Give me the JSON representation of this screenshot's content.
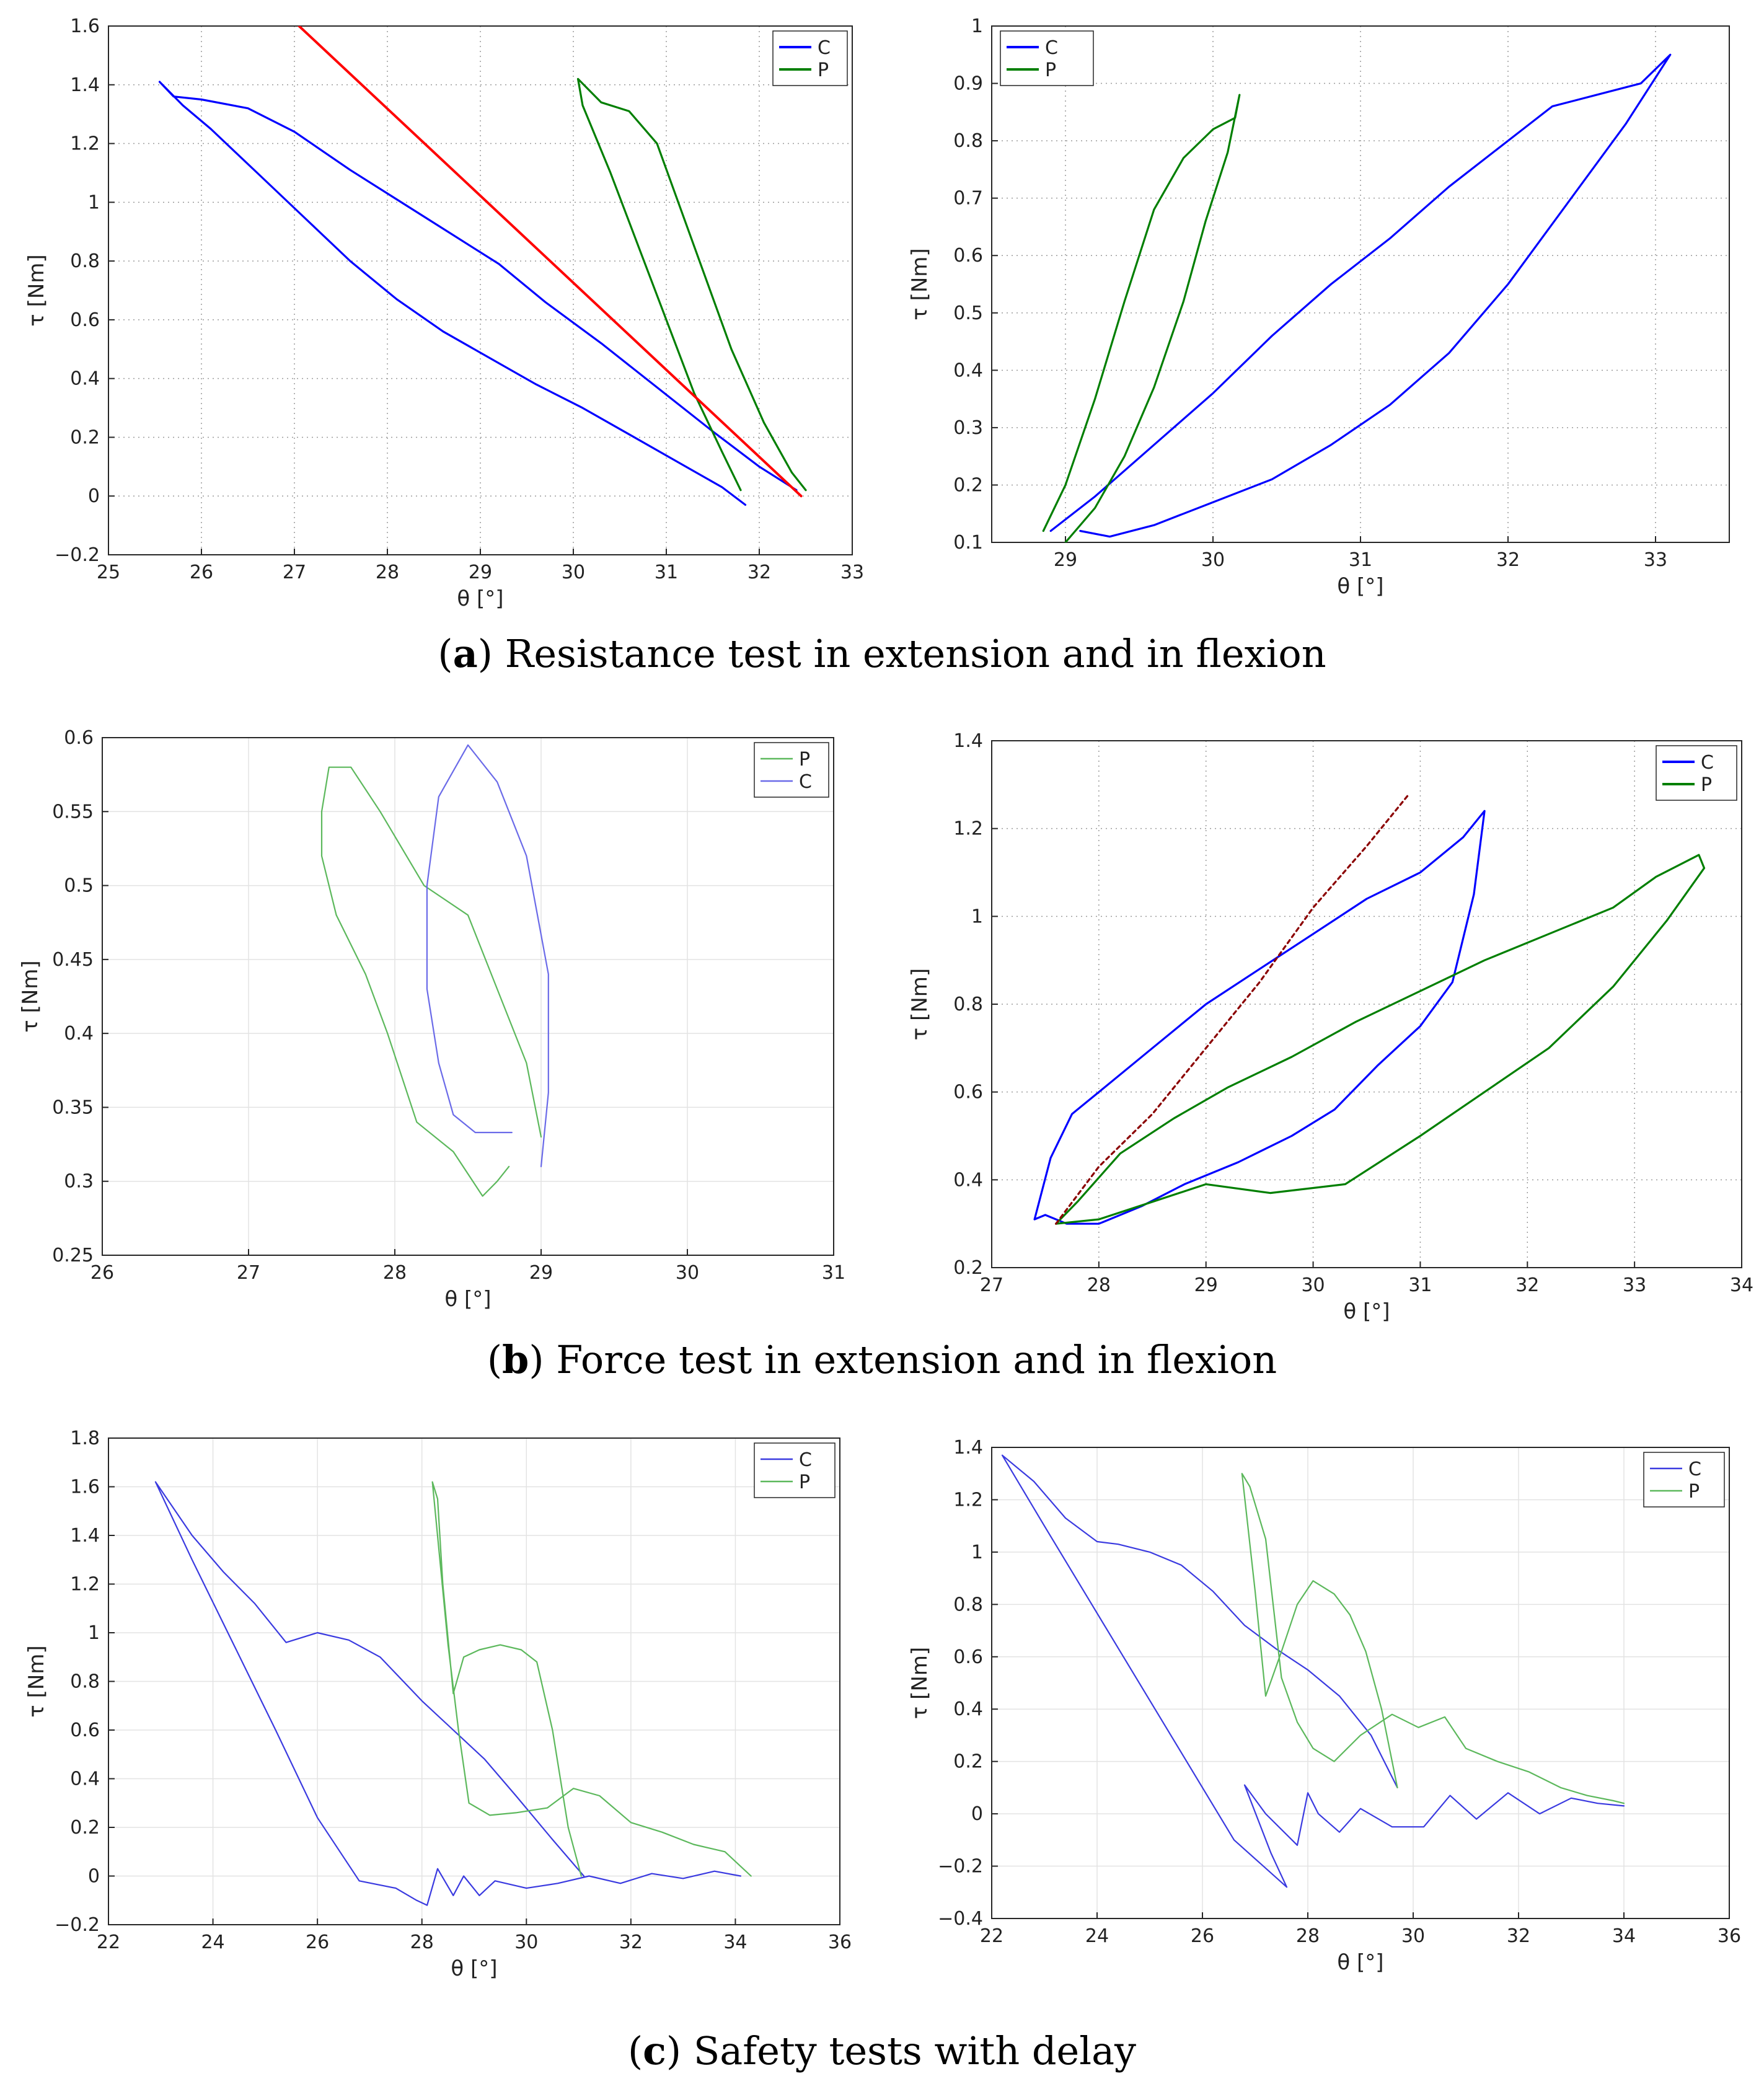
{
  "figure": {
    "captions": [
      {
        "letter": "a",
        "text": "Resistance test in extension and in flexion"
      },
      {
        "letter": "b",
        "text": "Force test in extension and in flexion"
      },
      {
        "letter": "c",
        "text": "Safety tests with delay"
      }
    ]
  },
  "chart_data": [
    {
      "id": "a-left",
      "type": "line",
      "xlabel": "θ [°]",
      "ylabel": "τ [Nm]",
      "xlim": [
        25,
        33
      ],
      "ylim": [
        -0.2,
        1.6
      ],
      "xticks": [
        25,
        26,
        27,
        28,
        29,
        30,
        31,
        32,
        33
      ],
      "yticks": [
        -0.2,
        0,
        0.2,
        0.4,
        0.6,
        0.8,
        1,
        1.2,
        1.4,
        1.6
      ],
      "ytick_labels": [
        "−0.2",
        "0",
        "0.2",
        "0.4",
        "0.6",
        "0.8",
        "1",
        "1.2",
        "1.4",
        "1.6"
      ],
      "grid": "dotted",
      "legend_position": "top-right",
      "series": [
        {
          "name": "C",
          "color": "#0000ff",
          "x": [
            31.85,
            31.6,
            31.1,
            30.6,
            30.1,
            29.6,
            29.1,
            28.6,
            28.1,
            27.6,
            27.1,
            26.6,
            26.1,
            25.8,
            25.55,
            25.7,
            26.0,
            26.5,
            27.0,
            27.6,
            28.0,
            28.6,
            29.2,
            29.7,
            30.3,
            30.9,
            31.5,
            32.0,
            32.4
          ],
          "y": [
            -0.03,
            0.03,
            0.12,
            0.21,
            0.3,
            0.38,
            0.47,
            0.56,
            0.67,
            0.8,
            0.95,
            1.1,
            1.25,
            1.33,
            1.41,
            1.36,
            1.35,
            1.32,
            1.24,
            1.11,
            1.03,
            0.91,
            0.79,
            0.66,
            0.52,
            0.37,
            0.22,
            0.1,
            0.02
          ]
        },
        {
          "name": "P",
          "color": "#007f00",
          "x": [
            31.8,
            31.6,
            31.3,
            31.0,
            30.7,
            30.4,
            30.1,
            30.05,
            30.3,
            30.6,
            30.9,
            31.3,
            31.7,
            32.05,
            32.35,
            32.5
          ],
          "y": [
            0.02,
            0.15,
            0.35,
            0.6,
            0.85,
            1.1,
            1.33,
            1.42,
            1.34,
            1.31,
            1.2,
            0.85,
            0.5,
            0.25,
            0.08,
            0.02
          ]
        },
        {
          "name": "",
          "color": "#ff0000",
          "x": [
            27.05,
            32.45
          ],
          "y": [
            1.6,
            0.0
          ]
        }
      ]
    },
    {
      "id": "a-right",
      "type": "line",
      "xlabel": "θ [°]",
      "ylabel": "τ [Nm]",
      "xlim": [
        28.5,
        33.5
      ],
      "ylim": [
        0.1,
        1.0
      ],
      "xticks": [
        29,
        30,
        31,
        32,
        33
      ],
      "yticks": [
        0.1,
        0.2,
        0.3,
        0.4,
        0.5,
        0.6,
        0.7,
        0.8,
        0.9,
        1
      ],
      "ytick_labels": [
        "0.1",
        "0.2",
        "0.3",
        "0.4",
        "0.5",
        "0.6",
        "0.7",
        "0.8",
        "0.9",
        "1"
      ],
      "grid": "dotted",
      "legend_position": "top-left",
      "series": [
        {
          "name": "C",
          "color": "#0000ff",
          "x": [
            28.9,
            29.2,
            29.6,
            30.0,
            30.4,
            30.8,
            31.2,
            31.6,
            32.0,
            32.3,
            32.6,
            32.9,
            33.1,
            32.8,
            32.4,
            32.0,
            31.6,
            31.2,
            30.8,
            30.4,
            30.0,
            29.6,
            29.3,
            29.1
          ],
          "y": [
            0.12,
            0.18,
            0.27,
            0.36,
            0.46,
            0.55,
            0.63,
            0.72,
            0.8,
            0.86,
            0.88,
            0.9,
            0.95,
            0.83,
            0.69,
            0.55,
            0.43,
            0.34,
            0.27,
            0.21,
            0.17,
            0.13,
            0.11,
            0.12
          ]
        },
        {
          "name": "P",
          "color": "#007f00",
          "x": [
            28.85,
            29.0,
            29.2,
            29.4,
            29.6,
            29.8,
            30.0,
            30.15,
            30.18,
            30.1,
            29.95,
            29.8,
            29.6,
            29.4,
            29.2,
            29.0
          ],
          "y": [
            0.12,
            0.2,
            0.35,
            0.52,
            0.68,
            0.77,
            0.82,
            0.84,
            0.88,
            0.78,
            0.66,
            0.52,
            0.37,
            0.25,
            0.16,
            0.1
          ]
        }
      ]
    },
    {
      "id": "b-left",
      "type": "line",
      "xlabel": "θ [°]",
      "ylabel": "τ [Nm]",
      "xlim": [
        26,
        31
      ],
      "ylim": [
        0.25,
        0.6
      ],
      "xticks": [
        26,
        27,
        28,
        29,
        30,
        31
      ],
      "yticks": [
        0.25,
        0.3,
        0.35,
        0.4,
        0.45,
        0.5,
        0.55,
        0.6
      ],
      "ytick_labels": [
        "0.25",
        "0.3",
        "0.35",
        "0.4",
        "0.45",
        "0.5",
        "0.55",
        "0.6"
      ],
      "grid": "solid",
      "legend_position": "top-right",
      "series": [
        {
          "name": "P",
          "color": "#5cb85c",
          "x": [
            28.78,
            28.7,
            28.6,
            28.4,
            28.15,
            27.95,
            27.8,
            27.6,
            27.5,
            27.5,
            27.55,
            27.7,
            27.9,
            28.2,
            28.5,
            28.7,
            28.9,
            29.0
          ],
          "y": [
            0.31,
            0.3,
            0.29,
            0.32,
            0.34,
            0.4,
            0.44,
            0.48,
            0.52,
            0.55,
            0.58,
            0.58,
            0.55,
            0.5,
            0.48,
            0.43,
            0.38,
            0.33
          ]
        },
        {
          "name": "C",
          "color": "#6a6ae8",
          "x": [
            28.8,
            28.55,
            28.4,
            28.3,
            28.22,
            28.22,
            28.3,
            28.5,
            28.7,
            28.9,
            29.05,
            29.05,
            29.0
          ],
          "y": [
            0.333,
            0.333,
            0.345,
            0.38,
            0.43,
            0.5,
            0.56,
            0.595,
            0.57,
            0.52,
            0.44,
            0.36,
            0.31
          ]
        }
      ]
    },
    {
      "id": "b-right",
      "type": "line",
      "xlabel": "θ [°]",
      "ylabel": "τ [Nm]",
      "xlim": [
        27,
        34
      ],
      "ylim": [
        0.2,
        1.4
      ],
      "xticks": [
        27,
        28,
        29,
        30,
        31,
        32,
        33,
        34
      ],
      "yticks": [
        0.2,
        0.4,
        0.6,
        0.8,
        1,
        1.2,
        1.4
      ],
      "ytick_labels": [
        "0.2",
        "0.4",
        "0.6",
        "0.8",
        "1",
        "1.2",
        "1.4"
      ],
      "grid": "dotted",
      "legend_position": "top-right",
      "series": [
        {
          "name": "C",
          "color": "#0000ff",
          "x": [
            27.4,
            27.55,
            27.75,
            28.0,
            28.5,
            29.0,
            29.5,
            30.0,
            30.5,
            31.0,
            31.4,
            31.6,
            31.5,
            31.3,
            31.0,
            30.6,
            30.2,
            29.8,
            29.3,
            28.8,
            28.4,
            28.0,
            27.7,
            27.5,
            27.4
          ],
          "y": [
            0.31,
            0.45,
            0.55,
            0.6,
            0.7,
            0.8,
            0.88,
            0.96,
            1.04,
            1.1,
            1.18,
            1.24,
            1.05,
            0.85,
            0.75,
            0.66,
            0.56,
            0.5,
            0.44,
            0.39,
            0.34,
            0.3,
            0.3,
            0.32,
            0.31
          ]
        },
        {
          "name": "P",
          "color": "#007f00",
          "x": [
            27.6,
            27.8,
            28.2,
            28.7,
            29.2,
            29.8,
            30.4,
            31.0,
            31.6,
            32.2,
            32.8,
            33.2,
            33.6,
            33.65,
            33.3,
            32.8,
            32.2,
            31.6,
            31.0,
            30.3,
            29.6,
            29.0,
            28.5,
            28.0,
            27.6
          ],
          "y": [
            0.3,
            0.35,
            0.46,
            0.54,
            0.61,
            0.68,
            0.76,
            0.83,
            0.9,
            0.96,
            1.02,
            1.09,
            1.14,
            1.11,
            0.99,
            0.84,
            0.7,
            0.6,
            0.5,
            0.39,
            0.37,
            0.39,
            0.35,
            0.31,
            0.3
          ]
        },
        {
          "name": "",
          "color": "#8b0000",
          "dashed": true,
          "x": [
            27.6,
            28.0,
            28.5,
            29.0,
            29.5,
            30.0,
            30.5,
            30.9
          ],
          "y": [
            0.3,
            0.43,
            0.55,
            0.7,
            0.85,
            1.02,
            1.16,
            1.28
          ]
        }
      ]
    },
    {
      "id": "c-left",
      "type": "line",
      "xlabel": "θ [°]",
      "ylabel": "τ [Nm]",
      "xlim": [
        22,
        36
      ],
      "ylim": [
        -0.2,
        1.8
      ],
      "xticks": [
        22,
        24,
        26,
        28,
        30,
        32,
        34,
        36
      ],
      "yticks": [
        -0.2,
        0,
        0.2,
        0.4,
        0.6,
        0.8,
        1,
        1.2,
        1.4,
        1.6,
        1.8
      ],
      "ytick_labels": [
        "−0.2",
        "0",
        "0.2",
        "0.4",
        "0.6",
        "0.8",
        "1",
        "1.2",
        "1.4",
        "1.6",
        "1.8"
      ],
      "grid": "solid",
      "legend_position": "top-right",
      "series": [
        {
          "name": "C",
          "color": "#3a3ae0",
          "x": [
            31.1,
            30.5,
            29.8,
            29.2,
            28.6,
            28.0,
            27.2,
            26.6,
            26.0,
            25.4,
            24.8,
            24.2,
            23.6,
            22.9,
            23.6,
            24.4,
            25.2,
            26.0,
            26.8,
            27.5,
            27.9,
            28.1,
            28.3,
            28.6,
            28.8,
            29.1,
            29.4,
            30.0,
            30.6,
            31.2,
            31.8,
            32.4,
            33.0,
            33.6,
            34.1
          ],
          "y": [
            0.0,
            0.15,
            0.33,
            0.48,
            0.6,
            0.72,
            0.9,
            0.97,
            1.0,
            0.96,
            1.12,
            1.25,
            1.4,
            1.62,
            1.3,
            0.95,
            0.6,
            0.24,
            -0.02,
            -0.05,
            -0.1,
            -0.12,
            0.03,
            -0.08,
            0.0,
            -0.08,
            -0.02,
            -0.05,
            -0.03,
            0.0,
            -0.03,
            0.01,
            -0.01,
            0.02,
            0.0
          ]
        },
        {
          "name": "P",
          "color": "#5cb85c",
          "x": [
            31.05,
            30.8,
            30.5,
            30.2,
            29.9,
            29.5,
            29.1,
            28.8,
            28.6,
            28.4,
            28.3,
            28.2,
            28.5,
            28.7,
            28.9,
            29.3,
            29.8,
            30.4,
            30.9,
            31.4,
            32.0,
            32.6,
            33.2,
            33.8,
            34.3
          ],
          "y": [
            0.0,
            0.2,
            0.6,
            0.88,
            0.93,
            0.95,
            0.93,
            0.9,
            0.75,
            1.2,
            1.55,
            1.62,
            0.95,
            0.6,
            0.3,
            0.25,
            0.26,
            0.28,
            0.36,
            0.33,
            0.22,
            0.18,
            0.13,
            0.1,
            0.0
          ]
        }
      ]
    },
    {
      "id": "c-right",
      "type": "line",
      "xlabel": "θ [°]",
      "ylabel": "τ [Nm]",
      "xlim": [
        22,
        36
      ],
      "ylim": [
        -0.4,
        1.4
      ],
      "xticks": [
        22,
        24,
        26,
        28,
        30,
        32,
        34,
        36
      ],
      "yticks": [
        -0.4,
        -0.2,
        0,
        0.2,
        0.4,
        0.6,
        0.8,
        1,
        1.2,
        1.4
      ],
      "ytick_labels": [
        "−0.4",
        "−0.2",
        "0",
        "0.2",
        "0.4",
        "0.6",
        "0.8",
        "1",
        "1.2",
        "1.4"
      ],
      "grid": "solid",
      "legend_position": "top-right",
      "series": [
        {
          "name": "C",
          "color": "#3a3ae0",
          "x": [
            29.7,
            29.2,
            28.6,
            28.0,
            27.4,
            26.8,
            26.2,
            25.6,
            25.0,
            24.4,
            24.0,
            23.4,
            22.8,
            22.2,
            23.0,
            24.2,
            25.4,
            26.6,
            27.6,
            27.3,
            26.8,
            27.2,
            27.8,
            28.0,
            28.2,
            28.6,
            29.0,
            29.6,
            30.2,
            30.7,
            31.2,
            31.8,
            32.4,
            33.0,
            33.5,
            34.0
          ],
          "y": [
            0.1,
            0.3,
            0.45,
            0.55,
            0.63,
            0.72,
            0.85,
            0.95,
            1.0,
            1.03,
            1.04,
            1.13,
            1.27,
            1.37,
            1.1,
            0.7,
            0.3,
            -0.1,
            -0.28,
            -0.15,
            0.11,
            0.0,
            -0.12,
            0.08,
            0.0,
            -0.07,
            0.02,
            -0.05,
            -0.05,
            0.07,
            -0.02,
            0.08,
            0.0,
            0.06,
            0.04,
            0.03
          ]
        },
        {
          "name": "P",
          "color": "#5cb85c",
          "x": [
            29.7,
            29.4,
            29.1,
            28.8,
            28.5,
            28.1,
            27.8,
            27.5,
            27.2,
            27.0,
            26.75,
            26.9,
            27.2,
            27.5,
            27.8,
            28.1,
            28.5,
            29.0,
            29.6,
            30.1,
            30.6,
            31.0,
            31.6,
            32.2,
            32.8,
            33.3,
            33.8,
            34.0
          ],
          "y": [
            0.1,
            0.4,
            0.62,
            0.76,
            0.84,
            0.89,
            0.8,
            0.62,
            0.45,
            0.85,
            1.3,
            1.25,
            1.05,
            0.52,
            0.35,
            0.25,
            0.2,
            0.3,
            0.38,
            0.33,
            0.37,
            0.25,
            0.2,
            0.16,
            0.1,
            0.07,
            0.05,
            0.04
          ]
        }
      ]
    }
  ]
}
